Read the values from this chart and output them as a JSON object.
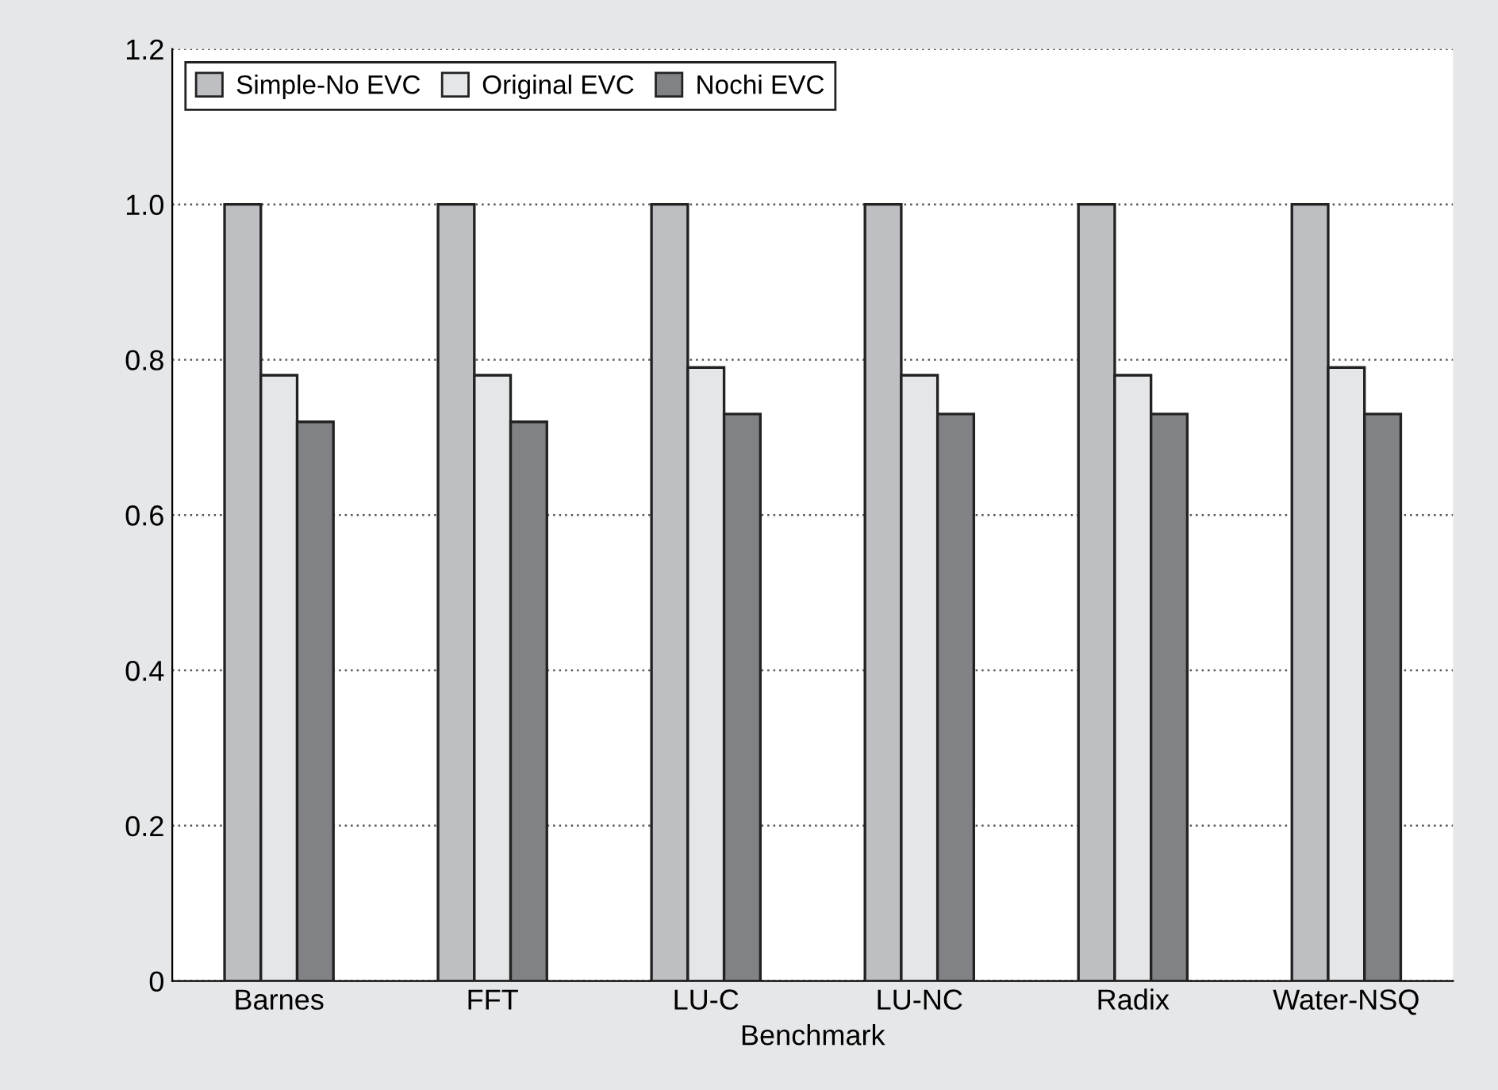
{
  "chart_data": {
    "type": "bar",
    "xlabel": "Benchmark",
    "categories": [
      "Barnes",
      "FFT",
      "LU-C",
      "LU-NC",
      "Radix",
      "Water-NSQ"
    ],
    "series": [
      {
        "name": "Simple-No EVC",
        "color": "#bebfc3",
        "values": [
          1.0,
          1.0,
          1.0,
          1.0,
          1.0,
          1.0
        ]
      },
      {
        "name": "Original EVC",
        "color": "#e5e6e8",
        "values": [
          0.78,
          0.78,
          0.79,
          0.78,
          0.78,
          0.79
        ]
      },
      {
        "name": "Nochi EVC",
        "color": "#818286",
        "values": [
          0.72,
          0.72,
          0.73,
          0.73,
          0.73,
          0.73
        ]
      }
    ],
    "ylim": [
      0,
      1.2
    ],
    "yticks": [
      {
        "value": 0,
        "label": "0"
      },
      {
        "value": 0.2,
        "label": "0.2"
      },
      {
        "value": 0.4,
        "label": "0.4"
      },
      {
        "value": 0.6,
        "label": "0.6"
      },
      {
        "value": 0.8,
        "label": "0.8"
      },
      {
        "value": 1.0,
        "label": "1.0"
      },
      {
        "value": 1.2,
        "label": "1.2"
      }
    ],
    "grid": "y",
    "legend": "top left"
  }
}
